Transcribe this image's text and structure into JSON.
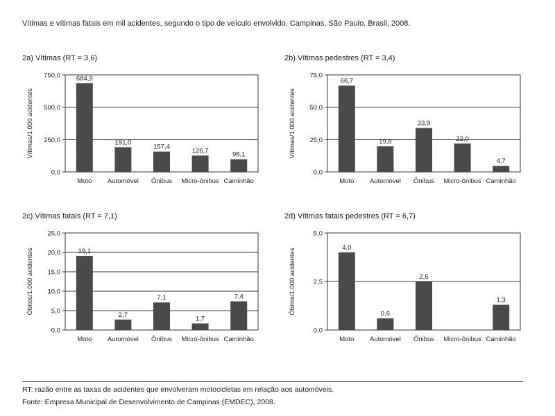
{
  "title": "Vítimas e vítimas fatais em mil acidentes, segundo o tipo de veículo envolvido. Campinas, São Paulo, Brasil, 2008.",
  "footnotes": {
    "rt_note": "RT: razão entre as taxas de acidentes que envolveram motocicletas em relação aos automóveis.",
    "source": "Fonte: Empresa Municipal de Desenvolvimento de Campinas (EMDEC), 2008."
  },
  "chart_data": [
    {
      "type": "bar",
      "title": "2a) Vítimas (RT = 3,6)",
      "ylabel": "Vítimas/1.000 acidentes",
      "categories": [
        "Moto",
        "Automóvel",
        "Ônibus",
        "Micro-ônibus",
        "Caminhão"
      ],
      "values": [
        684.9,
        191.0,
        157.4,
        126.7,
        98.1
      ],
      "value_labels": [
        "684,9",
        "191,0",
        "157,4",
        "126,7",
        "98,1"
      ],
      "ylim": [
        0,
        750
      ],
      "yticks": [
        0,
        250,
        500,
        750
      ],
      "ytick_labels": [
        "0,0",
        "250,0",
        "500,0",
        "750,0"
      ],
      "grid": true,
      "bar_color": "#4a4a4a"
    },
    {
      "type": "bar",
      "title": "2b) Vítimas pedestres (RT = 3,4)",
      "ylabel": "Vítimas/1.000 acidentes",
      "categories": [
        "Moto",
        "Automóvel",
        "Ônibus",
        "Micro-ônibus",
        "Caminhão"
      ],
      "values": [
        66.7,
        19.8,
        33.9,
        22.0,
        4.7
      ],
      "value_labels": [
        "66,7",
        "19,8",
        "33,9",
        "22,0",
        "4,7"
      ],
      "ylim": [
        0,
        75
      ],
      "yticks": [
        0,
        25,
        50,
        75
      ],
      "ytick_labels": [
        "0,0",
        "25,0",
        "50,0",
        "75,0"
      ],
      "grid": true,
      "bar_color": "#4a4a4a"
    },
    {
      "type": "bar",
      "title": "2c) Vítimas fatais (RT = 7,1)",
      "ylabel": "Óbitos/1.000 acidentes",
      "categories": [
        "Moto",
        "Automóvel",
        "Ônibus",
        "Micro-ônibus",
        "Caminhão"
      ],
      "values": [
        19.1,
        2.7,
        7.1,
        1.7,
        7.4
      ],
      "value_labels": [
        "19,1",
        "2,7",
        "7,1",
        "1,7",
        "7,4"
      ],
      "ylim": [
        0,
        25
      ],
      "yticks": [
        0,
        5,
        10,
        15,
        20,
        25
      ],
      "ytick_labels": [
        "0,0",
        "5,0",
        "10,0",
        "15,0",
        "20,0",
        "25,0"
      ],
      "grid": true,
      "bar_color": "#4a4a4a"
    },
    {
      "type": "bar",
      "title": "2d) Vítimas fatais pedestres (RT = 6,7)",
      "ylabel": "Óbitos/1.000 acidentes",
      "categories": [
        "Moto",
        "Automóvel",
        "Ônibus",
        "Micro-ônibus",
        "Caminhão"
      ],
      "values": [
        4.0,
        0.6,
        2.5,
        null,
        1.3
      ],
      "value_labels": [
        "4,0",
        "0,6",
        "2,5",
        "",
        "1,3"
      ],
      "ylim": [
        0,
        5
      ],
      "yticks": [
        0,
        2.5,
        5
      ],
      "ytick_labels": [
        "0,0",
        "2,5",
        "5,0"
      ],
      "grid": true,
      "bar_color": "#4a4a4a"
    }
  ]
}
